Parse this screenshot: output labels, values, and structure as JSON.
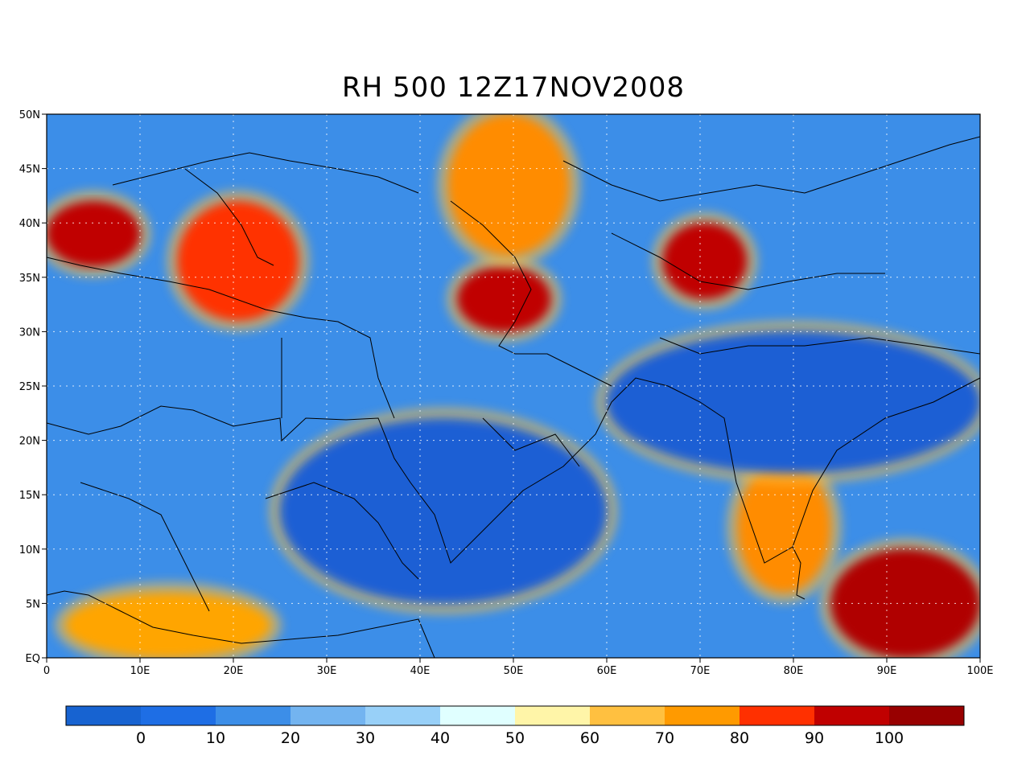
{
  "title": "RH 500 12Z17NOV2008",
  "map": {
    "lon_range": [
      0,
      100
    ],
    "lat_range": [
      0,
      50
    ],
    "x_tick_labels": [
      "0",
      "10E",
      "20E",
      "30E",
      "40E",
      "50E",
      "60E",
      "70E",
      "80E",
      "90E",
      "100E"
    ],
    "y_tick_labels": [
      "EQ",
      "5N",
      "10N",
      "15N",
      "20N",
      "25N",
      "30N",
      "35N",
      "40N",
      "45N",
      "50N"
    ],
    "grid": "dotted",
    "field": "relative humidity at 500 hPa",
    "background_level_color": "#3c8ee8",
    "regions": [
      {
        "name": "iran-iraq-moist-core",
        "color": "#c00000",
        "lon": [
          44,
          54
        ],
        "lat": [
          30,
          36
        ]
      },
      {
        "name": "caspian-band",
        "color": "#ff8c00",
        "lon": [
          43,
          56
        ],
        "lat": [
          37,
          50
        ]
      },
      {
        "name": "central-asia-core",
        "color": "#c00000",
        "lon": [
          66,
          75
        ],
        "lat": [
          33,
          40
        ]
      },
      {
        "name": "italy-balkans-band",
        "color": "#ff3000",
        "lon": [
          14,
          27
        ],
        "lat": [
          31,
          42
        ]
      },
      {
        "name": "western-med-core",
        "color": "#c00000",
        "lon": [
          0,
          10
        ],
        "lat": [
          36,
          42
        ]
      },
      {
        "name": "india-southern-core",
        "color": "#ff8c00",
        "lon": [
          74,
          84
        ],
        "lat": [
          6,
          18
        ]
      },
      {
        "name": "bay-of-bengal-core",
        "color": "#b00000",
        "lon": [
          84,
          100
        ],
        "lat": [
          0,
          10
        ]
      },
      {
        "name": "africa-equatorial-band",
        "color": "#ffa500",
        "lon": [
          2,
          24
        ],
        "lat": [
          0,
          6
        ]
      },
      {
        "name": "arabian-dry-core",
        "color": "#1e5fd4",
        "lon": [
          25,
          60
        ],
        "lat": [
          5,
          22
        ]
      },
      {
        "name": "north-india-dry",
        "color": "#1e5fd4",
        "lon": [
          60,
          100
        ],
        "lat": [
          17,
          30
        ]
      }
    ]
  },
  "colorbar": {
    "colors": [
      "#1763d1",
      "#1e6ee5",
      "#3c8ee8",
      "#73b4f0",
      "#98d0f8",
      "#e0ffff",
      "#fff5a8",
      "#ffc040",
      "#ff9a00",
      "#ff3000",
      "#c00000",
      "#980000"
    ],
    "tick_labels": [
      "0",
      "10",
      "20",
      "30",
      "40",
      "50",
      "60",
      "70",
      "80",
      "90",
      "100"
    ]
  }
}
